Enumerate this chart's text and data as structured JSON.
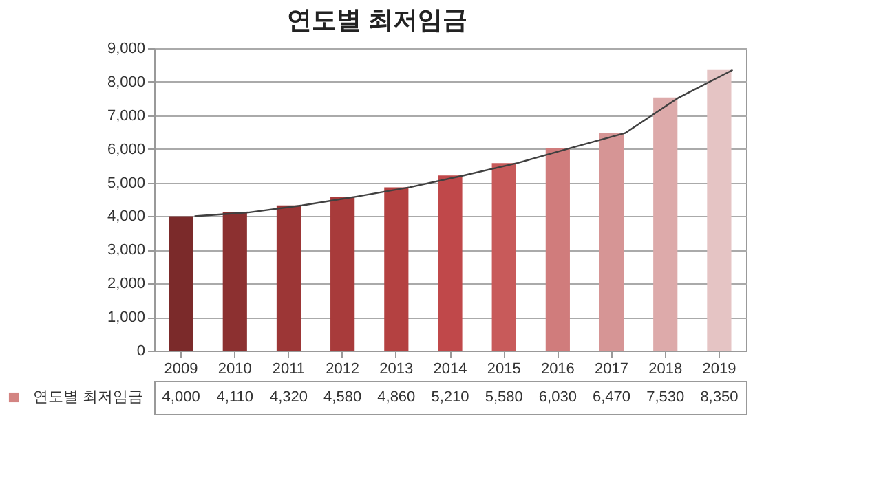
{
  "chart_data": {
    "type": "bar",
    "title": "연도별 최저임금",
    "categories": [
      "2009",
      "2010",
      "2011",
      "2012",
      "2013",
      "2014",
      "2015",
      "2016",
      "2017",
      "2018",
      "2019"
    ],
    "series": [
      {
        "name": "연도별 최저임금",
        "color": "#c0504d",
        "colors": [
          "#7b2a2a",
          "#8c3030",
          "#9c3636",
          "#a83b3b",
          "#b44141",
          "#c0484a",
          "#c85a5a",
          "#d07c7c",
          "#d69595",
          "#ddaaaa",
          "#e5c4c4"
        ],
        "values": [
          4000,
          4110,
          4320,
          4580,
          4860,
          5210,
          5580,
          6030,
          6470,
          7530,
          8350
        ],
        "value_labels": [
          "4,000",
          "4,110",
          "4,320",
          "4,580",
          "4,860",
          "5,210",
          "5,580",
          "6,030",
          "6,470",
          "7,530",
          "8,350"
        ]
      },
      {
        "type": "line",
        "color": "#404040",
        "values": [
          4000,
          4110,
          4320,
          4580,
          4860,
          5210,
          5580,
          6030,
          6470,
          7530,
          8350
        ]
      }
    ],
    "ylim": [
      0,
      9000
    ],
    "yticks": [
      {
        "value": 0,
        "label": "0"
      },
      {
        "value": 1000,
        "label": "1,000"
      },
      {
        "value": 2000,
        "label": "2,000"
      },
      {
        "value": 3000,
        "label": "3,000"
      },
      {
        "value": 4000,
        "label": "4,000"
      },
      {
        "value": 5000,
        "label": "5,000"
      },
      {
        "value": 6000,
        "label": "6,000"
      },
      {
        "value": 7000,
        "label": "7,000"
      },
      {
        "value": 8000,
        "label": "8,000"
      },
      {
        "value": 9000,
        "label": "9,000"
      }
    ],
    "grid": "y",
    "legend": "bottom",
    "marker": "none",
    "line_style": "solid"
  }
}
